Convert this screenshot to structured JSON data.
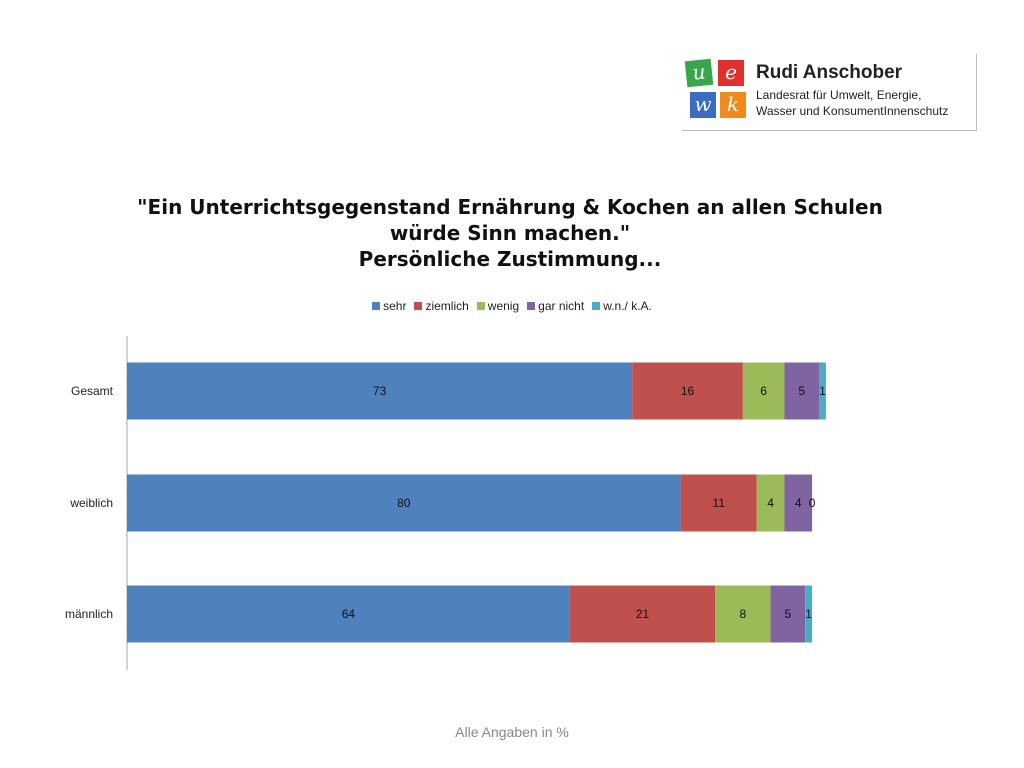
{
  "logo": {
    "tiles": [
      {
        "letter": "u",
        "color": "#3aa64a"
      },
      {
        "letter": "e",
        "color": "#e0312e"
      },
      {
        "letter": "w",
        "color": "#3b6cc1"
      },
      {
        "letter": "k",
        "color": "#f08a1c"
      }
    ],
    "name": "Rudi Anschober",
    "subtitle_line1": "Landesrat für Umwelt, Energie,",
    "subtitle_line2": "Wasser und KonsumentInnenschutz"
  },
  "chart_data": {
    "type": "bar",
    "orientation": "horizontal",
    "stacked": true,
    "title_lines": [
      "\"Ein Unterrichtsgegenstand Ernährung & Kochen an allen Schulen",
      "würde Sinn machen.\"",
      "Persönliche Zustimmung..."
    ],
    "categories": [
      "Gesamt",
      "weiblich",
      "männlich"
    ],
    "series": [
      {
        "name": "sehr",
        "color": "#4f81bd",
        "values": [
          73,
          80,
          64
        ]
      },
      {
        "name": "ziemlich",
        "color": "#c0504d",
        "values": [
          16,
          11,
          21
        ]
      },
      {
        "name": "wenig",
        "color": "#9bbb59",
        "values": [
          6,
          4,
          8
        ]
      },
      {
        "name": "gar nicht",
        "color": "#8064a2",
        "values": [
          5,
          4,
          5
        ]
      },
      {
        "name": "w.n./ k.A.",
        "color": "#4bacc6",
        "values": [
          1,
          0,
          1
        ]
      }
    ],
    "xlim": [
      0,
      100
    ],
    "legend_position": "top",
    "grid": false,
    "data_labels": true
  },
  "footnote": "Alle Angaben in %"
}
